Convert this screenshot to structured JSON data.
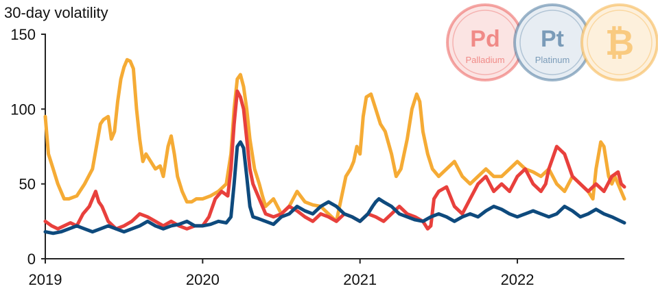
{
  "chart_data": {
    "type": "line",
    "ylabel": "30-day volatility",
    "ylim": [
      0,
      150
    ],
    "y_ticks": [
      "0",
      "50",
      "100",
      "150"
    ],
    "x_ticks": [
      "2019",
      "2020",
      "2021",
      "2022"
    ],
    "xlim": [
      2019.0,
      2022.68
    ],
    "grid": false,
    "legend": {
      "placement": "top-right",
      "items": [
        {
          "symbol": "Pd",
          "label": "Palladium",
          "color": "#e8403c"
        },
        {
          "symbol": "Pt",
          "label": "Platinum",
          "color": "#0e4a7d"
        },
        {
          "symbol": "₿",
          "label": "",
          "color": "#f5ab35"
        }
      ]
    },
    "series": [
      {
        "color": "#f5ab35",
        "x": [
          2019.0,
          2019.02,
          2019.05,
          2019.08,
          2019.1,
          2019.12,
          2019.15,
          2019.2,
          2019.25,
          2019.3,
          2019.35,
          2019.37,
          2019.4,
          2019.42,
          2019.44,
          2019.46,
          2019.48,
          2019.5,
          2019.52,
          2019.54,
          2019.56,
          2019.58,
          2019.6,
          2019.62,
          2019.64,
          2019.67,
          2019.7,
          2019.73,
          2019.75,
          2019.78,
          2019.8,
          2019.82,
          2019.84,
          2019.87,
          2019.9,
          2019.93,
          2019.96,
          2020.0,
          2020.05,
          2020.1,
          2020.15,
          2020.18,
          2020.2,
          2020.22,
          2020.24,
          2020.26,
          2020.28,
          2020.3,
          2020.33,
          2020.36,
          2020.38,
          2020.4,
          2020.45,
          2020.5,
          2020.55,
          2020.6,
          2020.65,
          2020.7,
          2020.75,
          2020.8,
          2020.85,
          2020.88,
          2020.91,
          2020.94,
          2020.96,
          2020.98,
          2021.0,
          2021.02,
          2021.04,
          2021.07,
          2021.1,
          2021.13,
          2021.16,
          2021.2,
          2021.23,
          2021.26,
          2021.3,
          2021.33,
          2021.36,
          2021.38,
          2021.4,
          2021.43,
          2021.46,
          2021.5,
          2021.55,
          2021.6,
          2021.65,
          2021.7,
          2021.75,
          2021.8,
          2021.85,
          2021.9,
          2021.95,
          2022.0,
          2022.05,
          2022.1,
          2022.15,
          2022.2,
          2022.25,
          2022.3,
          2022.35,
          2022.4,
          2022.45,
          2022.48,
          2022.5,
          2022.53,
          2022.55,
          2022.58,
          2022.6,
          2022.62,
          2022.64,
          2022.66,
          2022.68
        ],
        "values": [
          95,
          70,
          60,
          50,
          45,
          40,
          40,
          42,
          50,
          60,
          90,
          93,
          95,
          80,
          85,
          105,
          120,
          128,
          133,
          132,
          127,
          100,
          80,
          65,
          70,
          65,
          60,
          62,
          55,
          75,
          82,
          70,
          55,
          45,
          38,
          38,
          40,
          40,
          42,
          45,
          50,
          70,
          100,
          120,
          123,
          115,
          100,
          80,
          60,
          50,
          42,
          35,
          40,
          30,
          35,
          45,
          38,
          36,
          35,
          30,
          25,
          40,
          55,
          60,
          65,
          75,
          70,
          95,
          108,
          110,
          100,
          90,
          85,
          70,
          55,
          60,
          80,
          100,
          110,
          105,
          85,
          70,
          60,
          55,
          60,
          65,
          55,
          50,
          55,
          60,
          55,
          55,
          60,
          65,
          60,
          58,
          55,
          60,
          50,
          45,
          55,
          50,
          45,
          40,
          60,
          78,
          75,
          55,
          50,
          55,
          50,
          45,
          40
        ]
      },
      {
        "color": "#e8403c",
        "x": [
          2019.0,
          2019.04,
          2019.08,
          2019.12,
          2019.16,
          2019.2,
          2019.24,
          2019.28,
          2019.3,
          2019.32,
          2019.34,
          2019.36,
          2019.38,
          2019.4,
          2019.45,
          2019.5,
          2019.55,
          2019.6,
          2019.65,
          2019.7,
          2019.75,
          2019.8,
          2019.85,
          2019.9,
          2019.95,
          2020.0,
          2020.04,
          2020.08,
          2020.12,
          2020.16,
          2020.18,
          2020.2,
          2020.22,
          2020.24,
          2020.26,
          2020.28,
          2020.3,
          2020.32,
          2020.34,
          2020.36,
          2020.38,
          2020.4,
          2020.45,
          2020.5,
          2020.55,
          2020.6,
          2020.65,
          2020.7,
          2020.75,
          2020.8,
          2020.85,
          2020.9,
          2020.95,
          2021.0,
          2021.05,
          2021.1,
          2021.15,
          2021.2,
          2021.25,
          2021.3,
          2021.35,
          2021.4,
          2021.43,
          2021.45,
          2021.47,
          2021.5,
          2021.55,
          2021.6,
          2021.65,
          2021.7,
          2021.75,
          2021.8,
          2021.85,
          2021.9,
          2021.95,
          2022.0,
          2022.05,
          2022.1,
          2022.15,
          2022.18,
          2022.2,
          2022.25,
          2022.3,
          2022.35,
          2022.4,
          2022.45,
          2022.5,
          2022.55,
          2022.6,
          2022.64,
          2022.66,
          2022.68
        ],
        "values": [
          25,
          22,
          20,
          22,
          24,
          22,
          30,
          35,
          40,
          45,
          38,
          35,
          30,
          25,
          20,
          22,
          25,
          30,
          28,
          25,
          22,
          25,
          22,
          20,
          22,
          22,
          28,
          40,
          45,
          42,
          60,
          90,
          112,
          108,
          100,
          80,
          60,
          50,
          45,
          40,
          35,
          30,
          28,
          30,
          35,
          32,
          28,
          25,
          30,
          28,
          25,
          30,
          28,
          25,
          30,
          28,
          25,
          30,
          35,
          30,
          28,
          25,
          20,
          22,
          40,
          45,
          48,
          35,
          30,
          40,
          50,
          55,
          45,
          50,
          45,
          55,
          60,
          50,
          45,
          50,
          60,
          75,
          70,
          55,
          50,
          45,
          50,
          45,
          55,
          58,
          50,
          48
        ]
      },
      {
        "color": "#0e4a7d",
        "x": [
          2019.0,
          2019.05,
          2019.1,
          2019.15,
          2019.2,
          2019.25,
          2019.3,
          2019.35,
          2019.4,
          2019.45,
          2019.5,
          2019.55,
          2019.6,
          2019.65,
          2019.7,
          2019.75,
          2019.8,
          2019.85,
          2019.9,
          2019.95,
          2020.0,
          2020.05,
          2020.1,
          2020.15,
          2020.18,
          2020.2,
          2020.22,
          2020.24,
          2020.26,
          2020.28,
          2020.3,
          2020.32,
          2020.35,
          2020.4,
          2020.45,
          2020.5,
          2020.55,
          2020.6,
          2020.65,
          2020.7,
          2020.75,
          2020.8,
          2020.85,
          2020.9,
          2020.95,
          2021.0,
          2021.05,
          2021.08,
          2021.1,
          2021.12,
          2021.15,
          2021.2,
          2021.25,
          2021.3,
          2021.35,
          2021.4,
          2021.45,
          2021.5,
          2021.55,
          2021.6,
          2021.65,
          2021.7,
          2021.75,
          2021.8,
          2021.85,
          2021.9,
          2021.95,
          2022.0,
          2022.05,
          2022.1,
          2022.15,
          2022.2,
          2022.25,
          2022.3,
          2022.35,
          2022.4,
          2022.45,
          2022.5,
          2022.55,
          2022.6,
          2022.64,
          2022.68
        ],
        "values": [
          18,
          17,
          18,
          20,
          22,
          20,
          18,
          20,
          22,
          20,
          18,
          20,
          22,
          25,
          22,
          20,
          22,
          23,
          25,
          22,
          22,
          23,
          25,
          24,
          28,
          50,
          75,
          78,
          74,
          55,
          35,
          28,
          27,
          25,
          23,
          28,
          30,
          35,
          32,
          30,
          35,
          38,
          35,
          30,
          28,
          25,
          30,
          35,
          38,
          40,
          38,
          35,
          30,
          28,
          26,
          25,
          28,
          30,
          28,
          25,
          28,
          30,
          28,
          32,
          35,
          33,
          30,
          28,
          30,
          32,
          30,
          28,
          30,
          35,
          32,
          28,
          30,
          33,
          30,
          28,
          26,
          24
        ]
      }
    ]
  }
}
